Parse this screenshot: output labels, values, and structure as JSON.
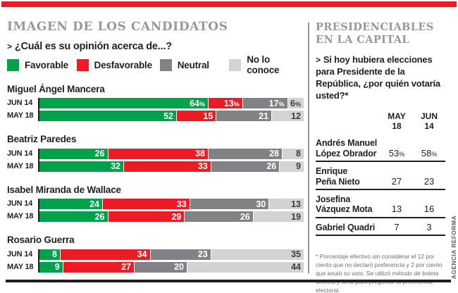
{
  "page": {
    "top_rule_color": "#ed1c24",
    "bottom_rule_color": "#1d1d1b",
    "divider_color": "#939598",
    "brand": "AGENCIA REFORMA",
    "question_marker": ">"
  },
  "left_panel": {
    "title": "IMAGEN DE LOS CANDIDATOS",
    "question": "¿Cuál es su opinión acerca de...?"
  },
  "right_panel": {
    "title_lines": [
      "PRESIDENCIABLES",
      "EN LA CAPITAL"
    ],
    "question": "Si hoy hubiera elecciones para Presidente de la República, ¿por quién votaría usted?*"
  },
  "chart_data": [
    {
      "type": "bar",
      "subtype": "horizontal-stacked",
      "title": "IMAGEN DE LOS CANDIDATOS",
      "question": "¿Cuál es su opinión acerca de...?",
      "unit": "%",
      "xlim": [
        0,
        100
      ],
      "legend": [
        {
          "label": "Favorable",
          "color": "#00a14b"
        },
        {
          "label": "Desfavorable",
          "color": "#ed1c24"
        },
        {
          "label": "Neutral",
          "color": "#808285"
        },
        {
          "label": "No lo conoce",
          "color": "#d2d3d5"
        }
      ],
      "groups": [
        {
          "candidate": "Miguel Ángel Mancera",
          "rows": [
            {
              "label": "JUN 14",
              "values": [
                64,
                13,
                17,
                6
              ],
              "labels": [
                "64%",
                "13%",
                "17%",
                "6%"
              ]
            },
            {
              "label": "MAY 18",
              "values": [
                52,
                15,
                21,
                12
              ],
              "labels": [
                "52",
                "15",
                "21",
                "12"
              ]
            }
          ]
        },
        {
          "candidate": "Beatriz Paredes",
          "rows": [
            {
              "label": "JUN 14",
              "values": [
                26,
                38,
                28,
                8
              ],
              "labels": [
                "26",
                "38",
                "28",
                "8"
              ]
            },
            {
              "label": "MAY 18",
              "values": [
                32,
                33,
                26,
                9
              ],
              "labels": [
                "32",
                "33",
                "26",
                "9"
              ]
            }
          ]
        },
        {
          "candidate": "Isabel Miranda de Wallace",
          "rows": [
            {
              "label": "JUN 14",
              "values": [
                24,
                33,
                30,
                13
              ],
              "labels": [
                "24",
                "33",
                "30",
                "13"
              ]
            },
            {
              "label": "MAY 18",
              "values": [
                26,
                29,
                26,
                19
              ],
              "labels": [
                "26",
                "29",
                "26",
                "19"
              ]
            }
          ]
        },
        {
          "candidate": "Rosario Guerra",
          "rows": [
            {
              "label": "JUN 14",
              "values": [
                8,
                34,
                23,
                35
              ],
              "labels": [
                "8",
                "34",
                "23",
                "35"
              ]
            },
            {
              "label": "MAY 18",
              "values": [
                9,
                27,
                20,
                44
              ],
              "labels": [
                "9",
                "27",
                "20",
                "44"
              ]
            }
          ]
        }
      ]
    },
    {
      "type": "table",
      "title": "PRESIDENCIABLES EN LA CAPITAL",
      "question": "Si hoy hubiera elecciones para Presidente de la República, ¿por quién votaría usted?*",
      "columns": [
        {
          "line1": "MAY",
          "line2": "18"
        },
        {
          "line1": "JUN",
          "line2": "14"
        }
      ],
      "rows": [
        {
          "name_lines": [
            "Andrés Manuel",
            "López Obrador"
          ],
          "values": [
            "53%",
            "58%"
          ]
        },
        {
          "name_lines": [
            "Enrique",
            "Peña Nieto"
          ],
          "values": [
            "27",
            "23"
          ]
        },
        {
          "name_lines": [
            "Josefina",
            "Vázquez Mota"
          ],
          "values": [
            "13",
            "16"
          ]
        },
        {
          "name_lines": [
            "Gabriel Quadri"
          ],
          "values": [
            "7",
            "3"
          ]
        }
      ],
      "footnote": "* Porcentaje efectivo sin considerar el 12 por ciento que no declaró preferencia y 2 por ciento que anuló su voto. Se utilizó método de boleta secreta y urna para preguntar la preferencia electoral."
    }
  ]
}
